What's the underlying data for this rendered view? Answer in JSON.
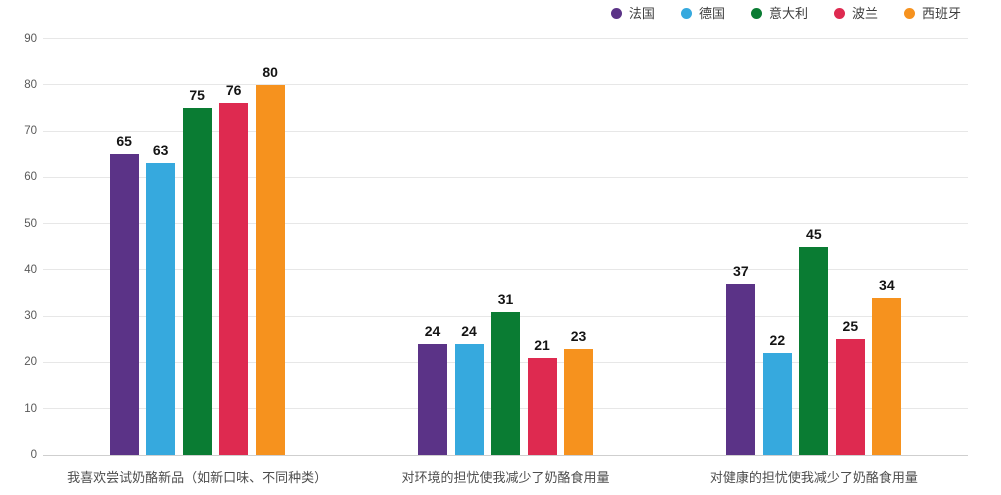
{
  "chart_data": {
    "type": "bar",
    "title": "",
    "xlabel": "",
    "ylabel": "",
    "categories": [
      "我喜欢尝试奶酪新品（如新口味、不同种类）",
      "对环境的担忧使我减少了奶酪食用量",
      "对健康的担忧使我减少了奶酪食用量"
    ],
    "series": [
      {
        "name": "法国",
        "color": "#5B3387",
        "values": [
          65,
          24,
          37
        ]
      },
      {
        "name": "德国",
        "color": "#36A9DE",
        "values": [
          63,
          24,
          22
        ]
      },
      {
        "name": "意大利",
        "color": "#0A7C33",
        "values": [
          75,
          31,
          45
        ]
      },
      {
        "name": "波兰",
        "color": "#DE2A50",
        "values": [
          76,
          21,
          25
        ]
      },
      {
        "name": "西班牙",
        "color": "#F6921E",
        "values": [
          80,
          23,
          34
        ]
      }
    ],
    "ylim": [
      0,
      90
    ],
    "ytick_step": 10,
    "grid": true,
    "legend_position": "top-right",
    "value_labels": true
  },
  "colors": {
    "gridline": "#e7e7e7",
    "baseline": "#cfcfcf",
    "tick_text": "#595959",
    "category_text": "#4d4d4d",
    "value_text": "#141414",
    "legend_text": "#3d3d3d",
    "background": "#ffffff"
  }
}
